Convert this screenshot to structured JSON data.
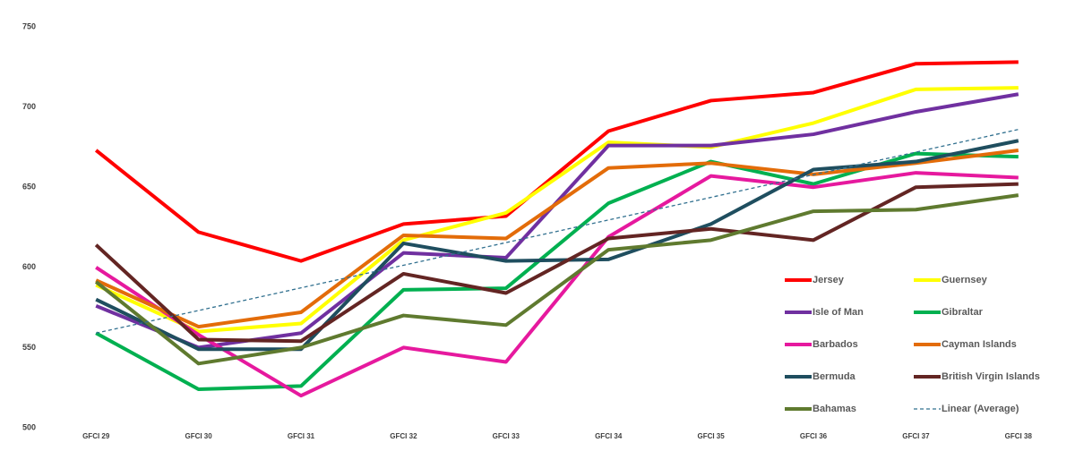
{
  "chart_data": {
    "type": "line",
    "categories": [
      "GFCI 29",
      "GFCI 30",
      "GFCI 31",
      "GFCI 32",
      "GFCI 33",
      "GFCI 34",
      "GFCI 35",
      "GFCI 36",
      "GFCI 37",
      "GFCI 38"
    ],
    "series": [
      {
        "name": "Jersey",
        "color": "#ff0000",
        "values": [
          673,
          622,
          604,
          627,
          632,
          685,
          704,
          709,
          727,
          728
        ]
      },
      {
        "name": "Guernsey",
        "color": "#ffff00",
        "values": [
          589,
          560,
          565,
          617,
          634,
          678,
          675,
          690,
          711,
          712
        ]
      },
      {
        "name": "Isle of Man",
        "color": "#7030a0",
        "values": [
          576,
          550,
          559,
          609,
          606,
          676,
          676,
          683,
          697,
          708
        ]
      },
      {
        "name": "Gibraltar",
        "color": "#00b050",
        "values": [
          559,
          524,
          526,
          586,
          587,
          640,
          666,
          652,
          671,
          669
        ]
      },
      {
        "name": "Barbados",
        "color": "#e6199e",
        "values": [
          600,
          558,
          520,
          550,
          541,
          619,
          657,
          650,
          659,
          656
        ]
      },
      {
        "name": "Cayman Islands",
        "color": "#e36c09",
        "values": [
          592,
          563,
          572,
          620,
          618,
          662,
          665,
          658,
          665,
          673
        ]
      },
      {
        "name": "Bermuda",
        "color": "#1f4e5f",
        "values": [
          580,
          549,
          549,
          615,
          604,
          605,
          627,
          661,
          666,
          679
        ]
      },
      {
        "name": "British Virgin Islands",
        "color": "#632523",
        "values": [
          614,
          555,
          554,
          596,
          584,
          618,
          624,
          617,
          650,
          652
        ]
      },
      {
        "name": "Bahamas",
        "color": "#5f7a2f",
        "values": [
          591,
          540,
          550,
          570,
          564,
          611,
          617,
          635,
          636,
          645
        ]
      }
    ],
    "trendline": {
      "name": "Linear (Average)",
      "color": "#31708f",
      "values": [
        559,
        686
      ]
    },
    "ylim": [
      500,
      750
    ],
    "yticks": [
      500,
      550,
      600,
      650,
      700,
      750
    ]
  }
}
